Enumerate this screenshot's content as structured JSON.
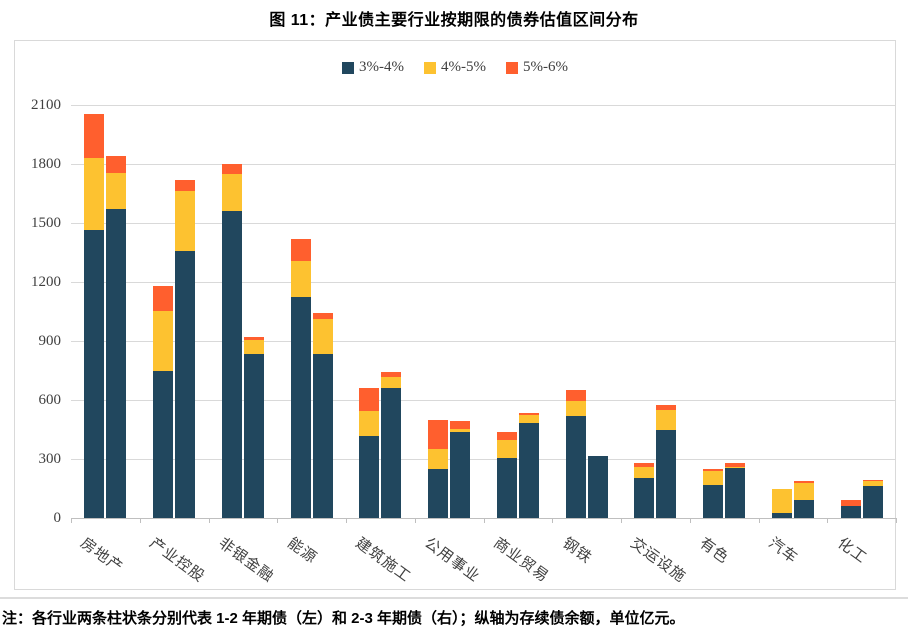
{
  "figure_title": "图 11：产业债主要行业按期限的债券估值区间分布",
  "note": "注：各行业两条柱状条分别代表 1-2 年期债（左）和 2-3 年期债（右）；纵轴为存续债余额，单位亿元。",
  "colors": {
    "series_blue": "#21475E",
    "series_yellow": "#FDC230",
    "series_orange": "#FF5F2E",
    "gridline": "#D9D9D9",
    "axis_line": "#BFBFBF",
    "label_text": "#404040"
  },
  "chart_data": {
    "type": "bar",
    "stacked": true,
    "title": "图 11：产业债主要行业按期限的债券估值区间分布",
    "legend_position": "top",
    "grid": "horizontal",
    "ylim": [
      0,
      2100
    ],
    "y_ticks": [
      0,
      300,
      600,
      900,
      1200,
      1500,
      1800,
      2100
    ],
    "y_unit": "亿元（存续债余额）",
    "categories": [
      "房地产",
      "产业控股",
      "非银金融",
      "能源",
      "建筑施工",
      "公用事业",
      "商业贸易",
      "钢铁",
      "交运设施",
      "有色",
      "汽车",
      "化工"
    ],
    "bars_per_category": [
      "1-2年期债（左）",
      "2-3年期债（右）"
    ],
    "series": [
      {
        "name": "3%-4%",
        "color": "#21475E",
        "left": [
          1465,
          745,
          1560,
          1125,
          415,
          250,
          305,
          520,
          205,
          170,
          25,
          60
        ],
        "right": [
          1570,
          1360,
          835,
          835,
          660,
          435,
          485,
          315,
          450,
          255,
          90,
          165
        ]
      },
      {
        "name": "4%-5%",
        "color": "#FDC230",
        "left": [
          365,
          310,
          190,
          180,
          130,
          100,
          90,
          75,
          55,
          70,
          125,
          0
        ],
        "right": [
          185,
          305,
          70,
          175,
          55,
          20,
          40,
          0,
          100,
          5,
          90,
          25
        ]
      },
      {
        "name": "5%-6%",
        "color": "#FF5F2E",
        "left": [
          225,
          125,
          50,
          115,
          115,
          150,
          40,
          55,
          20,
          10,
          0,
          30
        ],
        "right": [
          85,
          55,
          15,
          30,
          25,
          40,
          10,
          0,
          25,
          20,
          10,
          5
        ]
      }
    ]
  }
}
